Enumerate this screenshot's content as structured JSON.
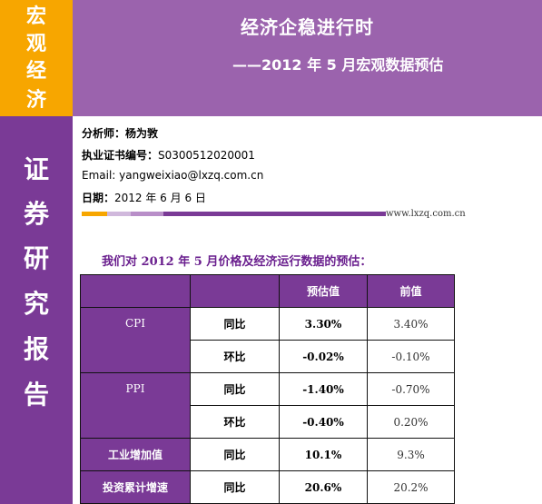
{
  "side_tag": [
    "宏",
    "观",
    "经",
    "济"
  ],
  "side_column": [
    "证",
    "券",
    "研",
    "究",
    "报",
    "告"
  ],
  "banner": {
    "title": "经济企稳进行时",
    "subtitle": "——2012 年 5 月宏观数据预估"
  },
  "analyst": {
    "name_label": "分析师：",
    "name": "杨为敩",
    "cert_label": "执业证书编号：",
    "cert": "S0300512020001",
    "email_label": "Email: ",
    "email": "yangweixiao@lxzq.com.cn",
    "date_label": "日期：",
    "date": "2012 年 6 月 6 日"
  },
  "website": "www.lxzq.com.cn",
  "section_title": "我们对 2012 年 5 月价格及经济运行数据的预估：",
  "table": {
    "headers": [
      "",
      "",
      "预估值",
      "前值"
    ],
    "rows": [
      {
        "category": "CPI",
        "metric": "同比",
        "estimate": "3.30%",
        "previous": "3.40%"
      },
      {
        "category": "",
        "metric": "环比",
        "estimate": "-0.02%",
        "previous": "-0.10%"
      },
      {
        "category": "PPI",
        "metric": "同比",
        "estimate": "-1.40%",
        "previous": "-0.70%"
      },
      {
        "category": "",
        "metric": "环比",
        "estimate": "-0.40%",
        "previous": "0.20%"
      },
      {
        "category": "工业增加值",
        "metric": "同比",
        "estimate": "10.1%",
        "previous": "9.3%"
      },
      {
        "category": "投资累计增速",
        "metric": "同比",
        "estimate": "20.6%",
        "previous": "20.2%"
      }
    ]
  },
  "colors": {
    "purple_dark": "#7a3a96",
    "purple_banner": "#9b63ad",
    "orange": "#f7a600",
    "title_purple": "#6a1f8e"
  }
}
